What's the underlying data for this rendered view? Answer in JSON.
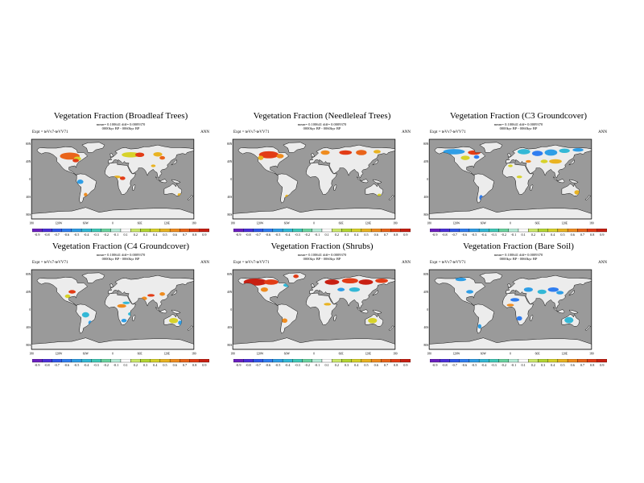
{
  "panels": [
    {
      "title": "Vegetation Fraction (Broadleaf Trees)",
      "stat1": "mean= 0.100641 diff= 0.0009370",
      "stat2": "0000kyr BP - 0060kyr BP",
      "expt": "Expt = teVv7-teVV71",
      "season": "ANN",
      "scale": [
        "-0.9",
        "-0.8",
        "-0.7",
        "-0.6",
        "-0.5",
        "-0.4",
        "-0.3",
        "-0.2",
        "-0.1",
        "0.1",
        "0.2",
        "0.3",
        "0.4",
        "0.5",
        "0.6",
        "0.7",
        "0.8",
        "0.9"
      ]
    },
    {
      "title": "Vegetation Fraction (Needleleaf Trees)",
      "stat1": "mean= 0.100641 diff= 0.0009370",
      "stat2": "0000kyr BP - 0060kyr BP",
      "expt": "Expt = teVv7-teVV71",
      "season": "ANN",
      "scale": [
        "-0.9",
        "-0.8",
        "-0.7",
        "-0.6",
        "-0.5",
        "-0.4",
        "-0.3",
        "-0.2",
        "-0.1",
        "0.1",
        "0.2",
        "0.3",
        "0.4",
        "0.5",
        "0.6",
        "0.7",
        "0.8",
        "0.9"
      ]
    },
    {
      "title": "Vegetation Fraction (C3 Groundcover)",
      "stat1": "mean= 0.100641 diff= 0.0009370",
      "stat2": "0000kyr BP - 0060kyr BP",
      "expt": "Expt = teVv7-teVV71",
      "season": "ANN",
      "scale": [
        "-0.9",
        "-0.8",
        "-0.7",
        "-0.6",
        "-0.5",
        "-0.4",
        "-0.3",
        "-0.2",
        "-0.1",
        "0.1",
        "0.2",
        "0.3",
        "0.4",
        "0.5",
        "0.6",
        "0.7",
        "0.8",
        "0.9"
      ]
    },
    {
      "title": "Vegetation Fraction (C4 Groundcover)",
      "stat1": "mean= 0.100641 diff= 0.0009370",
      "stat2": "0000kyr BP - 0060kyr BP",
      "expt": "Expt = teVv7-teVV71",
      "season": "ANN",
      "scale": [
        "-0.9",
        "-0.8",
        "-0.7",
        "-0.6",
        "-0.5",
        "-0.4",
        "-0.3",
        "-0.2",
        "-0.1",
        "0.1",
        "0.2",
        "0.3",
        "0.4",
        "0.5",
        "0.6",
        "0.7",
        "0.8",
        "0.9"
      ]
    },
    {
      "title": "Vegetation Fraction (Shrubs)",
      "stat1": "mean= 0.100641 diff= 0.0009370",
      "stat2": "0000kyr BP - 0060kyr BP",
      "expt": "Expt = teVv7-teVV71",
      "season": "ANN",
      "scale": [
        "-0.9",
        "-0.8",
        "-0.7",
        "-0.6",
        "-0.5",
        "-0.4",
        "-0.3",
        "-0.2",
        "-0.1",
        "0.1",
        "0.2",
        "0.3",
        "0.4",
        "0.5",
        "0.6",
        "0.7",
        "0.8",
        "0.9"
      ]
    },
    {
      "title": "Vegetation Fraction (Bare Soil)",
      "stat1": "mean= 0.100641 diff= 0.0009370",
      "stat2": "0000kyr BP - 0060kyr BP",
      "expt": "Expt = teVv7-teVV71",
      "season": "ANN",
      "scale": [
        "-0.9",
        "-0.8",
        "-0.7",
        "-0.6",
        "-0.5",
        "-0.4",
        "-0.3",
        "-0.2",
        "-0.1",
        "0.1",
        "0.2",
        "0.3",
        "0.4",
        "0.5",
        "0.6",
        "0.7",
        "0.8",
        "0.9"
      ]
    }
  ],
  "axes": {
    "lat_labels": [
      "80N",
      "40N",
      "0",
      "40S",
      "80S"
    ],
    "lon_labels": [
      "180",
      "120W",
      "60W",
      "0",
      "60E",
      "120E",
      "180"
    ]
  },
  "colors": {
    "ocean": "#9a9a9a",
    "land": "#ececec",
    "scale": [
      "#6a1fbf",
      "#4b2fd9",
      "#2f57e8",
      "#2f7df0",
      "#2f9ee6",
      "#33b8d6",
      "#3fc9b8",
      "#6ad3a0",
      "#b7ecd8",
      "#ffffff",
      "#cde86b",
      "#b4d633",
      "#d7d22a",
      "#e9b322",
      "#ef8c1f",
      "#e9641a",
      "#e23c16",
      "#c81f12"
    ]
  }
}
